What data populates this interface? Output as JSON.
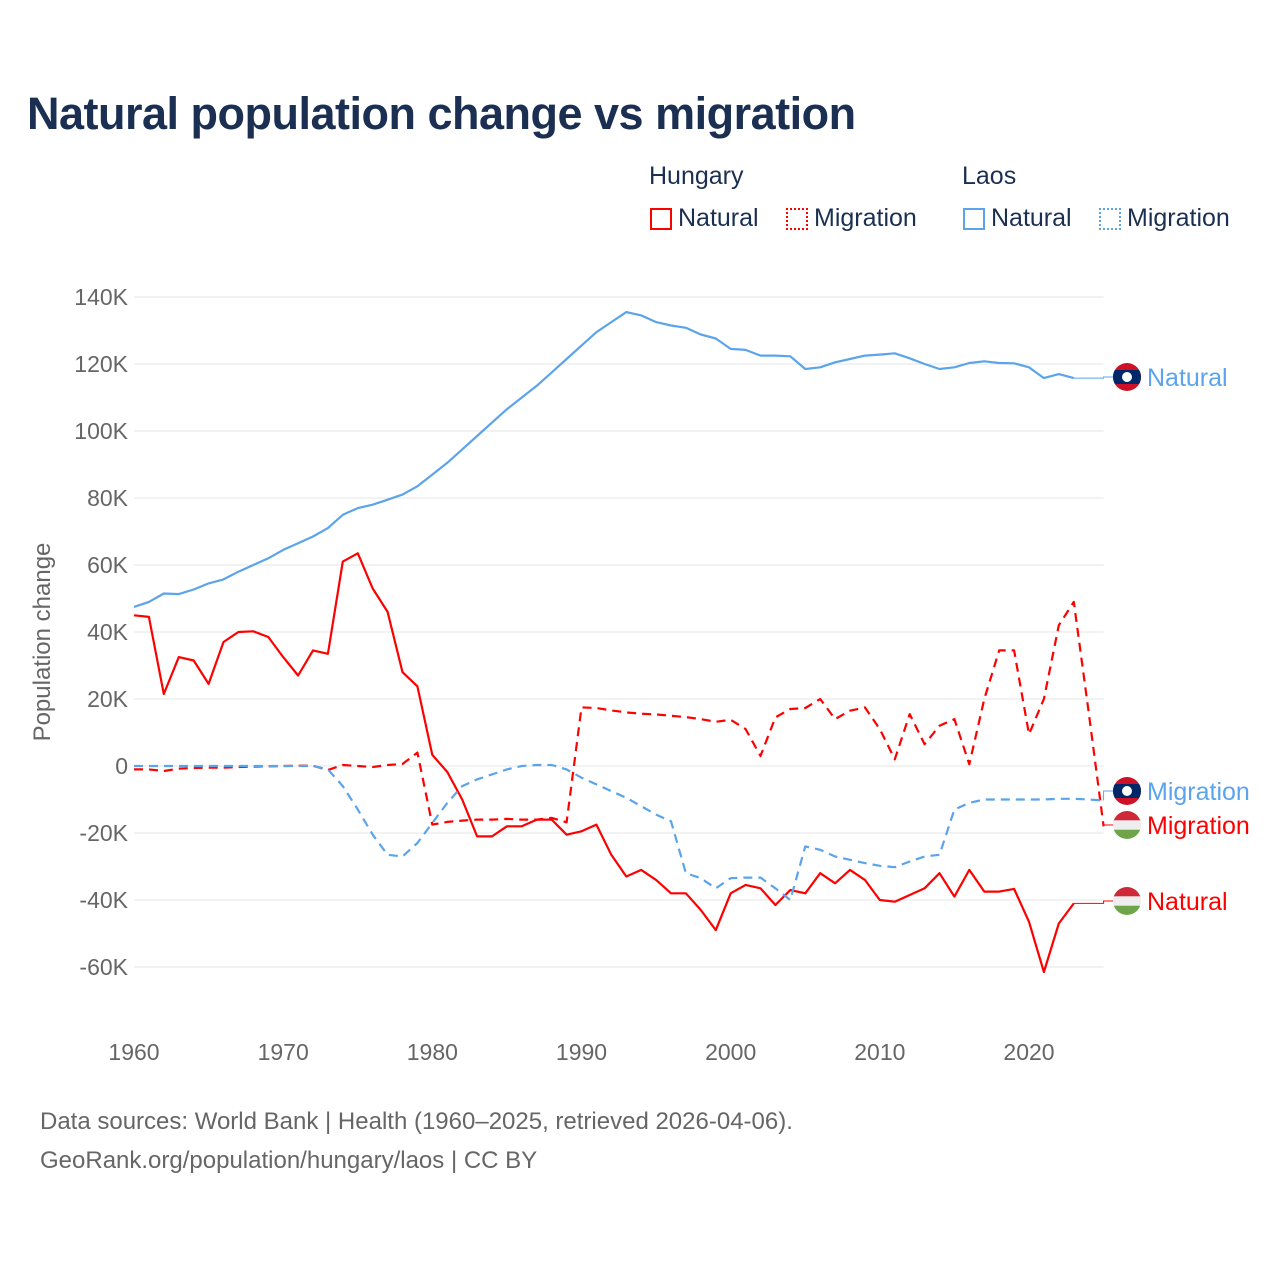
{
  "chart_data": {
    "type": "line",
    "title": "Natural population change vs migration",
    "ylabel": "Population change",
    "xlabel": "",
    "xlim": [
      1960,
      2025
    ],
    "ylim": [
      -70000,
      145000
    ],
    "x_ticks": [
      1960,
      1970,
      1980,
      1990,
      2000,
      2010,
      2020
    ],
    "x_tick_labels": [
      "1960",
      "1970",
      "1980",
      "1990",
      "2000",
      "2010",
      "2020"
    ],
    "y_ticks": [
      140000,
      120000,
      100000,
      80000,
      60000,
      40000,
      20000,
      0,
      -20000,
      -40000,
      -60000
    ],
    "y_tick_labels": [
      "140K",
      "120K",
      "100K",
      "80K",
      "60K",
      "40K",
      "20K",
      "0",
      "-20K",
      "-40K",
      "-60K"
    ],
    "grid": true,
    "legend": {
      "placement": "top-right",
      "groups": [
        {
          "name": "Hungary",
          "items": [
            "Natural",
            "Migration"
          ]
        },
        {
          "name": "Laos",
          "items": [
            "Natural",
            "Migration"
          ]
        }
      ]
    },
    "x_start": 1960,
    "series": [
      {
        "name": "Hungary Natural",
        "country": "Hungary",
        "kind": "Natural",
        "color": "#ff0000",
        "dashed": false,
        "end_label": "Natural",
        "values": [
          45000,
          44500,
          21500,
          32500,
          31500,
          24500,
          37000,
          40000,
          40200,
          38500,
          32500,
          27000,
          34500,
          33500,
          61000,
          63500,
          53000,
          46000,
          28000,
          23800,
          3300,
          -1800,
          -10000,
          -21000,
          -21000,
          -18000,
          -18000,
          -16000,
          -16000,
          -20500,
          -19500,
          -17500,
          -26500,
          -33000,
          -31000,
          -34000,
          -38000,
          -38000,
          -43000,
          -49000,
          -38000,
          -35500,
          -36500,
          -41500,
          -37000,
          -38000,
          -32000,
          -35000,
          -31000,
          -34000,
          -40000,
          -40500,
          -38500,
          -36500,
          -32000,
          -39000,
          -31000,
          -37500,
          -37500,
          -36700,
          -46500,
          -61500,
          -47000,
          -41000
        ]
      },
      {
        "name": "Hungary Migration",
        "country": "Hungary",
        "kind": "Migration",
        "color": "#ff0000",
        "dashed": true,
        "end_label": "Migration",
        "values": [
          -1000,
          -1000,
          -1500,
          -800,
          -600,
          -500,
          -500,
          -300,
          -200,
          -100,
          0,
          100,
          100,
          -1200,
          300,
          0,
          -300,
          300,
          600,
          4000,
          -17500,
          -16700,
          -16300,
          -16000,
          -16000,
          -15800,
          -16000,
          -16000,
          -15500,
          -16800,
          17500,
          17300,
          16600,
          16000,
          15600,
          15400,
          15000,
          14600,
          14000,
          13200,
          13800,
          11000,
          3000,
          14500,
          17000,
          17300,
          20000,
          14000,
          16500,
          17500,
          11000,
          2000,
          15500,
          6500,
          12000,
          14000,
          500,
          20000,
          34500,
          34500,
          9500,
          20000,
          42000,
          49000,
          16000,
          -18000
        ]
      },
      {
        "name": "Laos Natural",
        "country": "Laos",
        "kind": "Natural",
        "color": "#5ba4ec",
        "dashed": false,
        "end_label": "Natural",
        "values": [
          47500,
          49000,
          51500,
          51300,
          52700,
          54500,
          55700,
          58000,
          60000,
          62000,
          64500,
          66500,
          68500,
          71000,
          75000,
          77000,
          78000,
          79500,
          81000,
          83500,
          87000,
          90500,
          94500,
          98500,
          102500,
          106500,
          110000,
          113500,
          117500,
          121500,
          125500,
          129500,
          132500,
          135500,
          134500,
          132500,
          131500,
          130800,
          128800,
          127600,
          124500,
          124200,
          122500,
          122500,
          122300,
          118500,
          119000,
          120500,
          121500,
          122500,
          122800,
          123200,
          121700,
          120000,
          118500,
          119000,
          120300,
          120800,
          120300,
          120200,
          119000,
          115800,
          117000,
          115800
        ]
      },
      {
        "name": "Laos Migration",
        "country": "Laos",
        "kind": "Migration",
        "color": "#5ba4ec",
        "dashed": true,
        "end_label": "Migration",
        "values": [
          0,
          0,
          0,
          0,
          0,
          0,
          0,
          0,
          0,
          0,
          0,
          0,
          0,
          -1000,
          -6000,
          -13000,
          -20500,
          -26500,
          -27000,
          -23000,
          -17000,
          -11000,
          -6000,
          -4000,
          -2500,
          -1000,
          0,
          300,
          300,
          -1000,
          -3500,
          -5500,
          -7500,
          -9500,
          -12000,
          -14500,
          -16500,
          -32000,
          -33500,
          -36500,
          -33500,
          -33300,
          -33300,
          -36500,
          -40000,
          -24000,
          -25000,
          -27000,
          -28000,
          -29000,
          -29800,
          -30200,
          -28500,
          -27000,
          -26500,
          -13000,
          -11000,
          -10000,
          -10000,
          -10000,
          -10000,
          -10000,
          -9800,
          -9800,
          -10000,
          -10300
        ]
      }
    ]
  },
  "legend": {
    "hungary": "Hungary",
    "laos": "Laos",
    "natural": "Natural",
    "migration": "Migration",
    "hungary_color": "#ff0000",
    "laos_color": "#5ba4ec"
  },
  "footer": {
    "line1": "Data sources: World Bank | Health (1960–2025, retrieved 2026-04-06).",
    "line2": "GeoRank.org/population/hungary/laos | CC BY"
  }
}
